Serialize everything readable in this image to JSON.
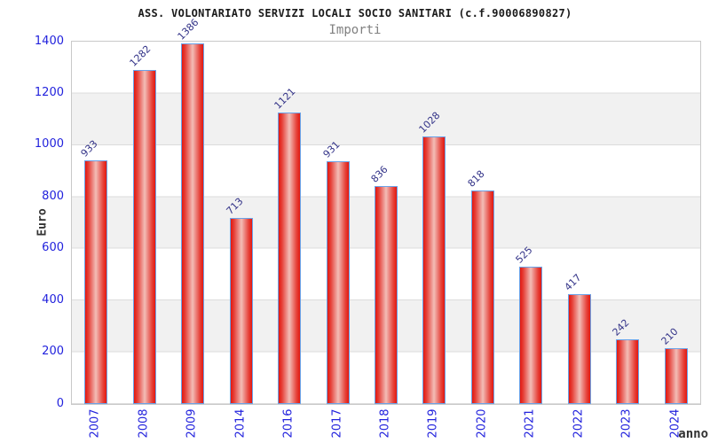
{
  "header": {
    "title": "ASS. VOLONTARIATO SERVIZI LOCALI SOCIO SANITARI (c.f.90006890827)",
    "subtitle": "Importi"
  },
  "axes": {
    "y_label": "Euro",
    "x_label": "anno",
    "y_ticks": [
      "0",
      "200",
      "400",
      "600",
      "800",
      "1000",
      "1200",
      "1400"
    ]
  },
  "chart_data": {
    "type": "bar",
    "title": "ASS. VOLONTARIATO SERVIZI LOCALI SOCIO SANITARI (c.f.90006890827)",
    "subtitle": "Importi",
    "xlabel": "anno",
    "ylabel": "Euro",
    "categories": [
      "2007",
      "2008",
      "2009",
      "2014",
      "2016",
      "2017",
      "2018",
      "2019",
      "2020",
      "2021",
      "2022",
      "2023",
      "2024"
    ],
    "values": [
      933,
      1282,
      1386,
      713,
      1121,
      931,
      836,
      1028,
      818,
      525,
      417,
      242,
      210
    ],
    "ylim": [
      0,
      1400
    ],
    "y_tick_step": 200,
    "grid": "alternating-horizontal-bands",
    "legend": "none",
    "bar_color": "#e3180f",
    "bar_highlight_color": "#f3beb6",
    "bar_border_color": "#6aa2e8",
    "tick_label_color": "#2222dd",
    "value_label_color": "#333388"
  },
  "colors": {
    "background": "#ffffff",
    "band": "#f1f1f1",
    "gridline": "#dcdcdc",
    "frame": "#c9c9c9",
    "title": "#1a1a1a",
    "subtitle": "#808080",
    "axis_title": "#333333"
  }
}
